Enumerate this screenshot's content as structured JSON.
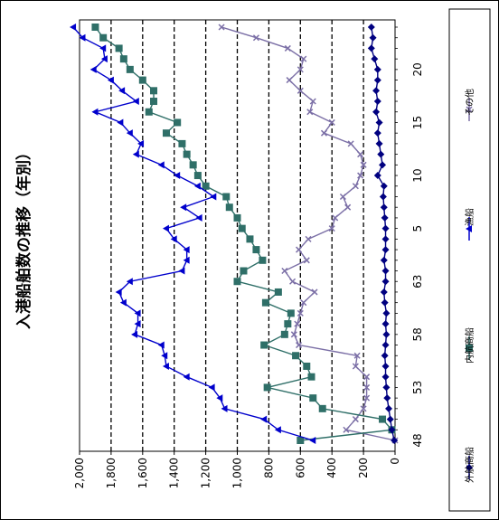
{
  "chart_data": {
    "type": "line",
    "title": "入港船舶数の推移（年別）",
    "x": [
      "48",
      "",
      "",
      "",
      "",
      "53",
      "",
      "",
      "",
      "",
      "58",
      "",
      "",
      "",
      "",
      "63",
      "1",
      "2",
      "3",
      "4",
      "5",
      "6",
      "7",
      "8",
      "9",
      "10",
      "11",
      "12",
      "13",
      "14",
      "15",
      "16",
      "17",
      "18",
      "19",
      "20",
      "21",
      "22",
      "23",
      "24"
    ],
    "x_tick_labels": [
      "48",
      "53",
      "58",
      "63",
      "5",
      "10",
      "15",
      "20"
    ],
    "ylim": [
      0,
      2000
    ],
    "y_tick_labels": [
      "2,000",
      "1,800",
      "1,600",
      "1,400",
      "1,200",
      "1,000",
      "800",
      "600",
      "400",
      "200",
      "0"
    ],
    "grid": true,
    "legend_position": "right",
    "series": [
      {
        "name": "外航商船",
        "color": "#000080",
        "marker": "diamond",
        "values": [
          5,
          20,
          30,
          40,
          50,
          55,
          60,
          60,
          65,
          60,
          55,
          60,
          55,
          65,
          70,
          60,
          60,
          70,
          60,
          60,
          60,
          65,
          70,
          75,
          70,
          110,
          80,
          90,
          100,
          110,
          100,
          120,
          110,
          120,
          110,
          110,
          130,
          150,
          140,
          150
        ]
      },
      {
        "name": "内航商船",
        "color": "#2F6F68",
        "marker": "square",
        "values": [
          600,
          20,
          80,
          460,
          520,
          810,
          530,
          560,
          630,
          830,
          700,
          680,
          660,
          820,
          740,
          1000,
          960,
          840,
          880,
          920,
          970,
          1000,
          1050,
          1070,
          1200,
          1250,
          1280,
          1320,
          1350,
          1450,
          1380,
          1560,
          1530,
          1530,
          1600,
          1680,
          1720,
          1750,
          1850,
          1900
        ]
      },
      {
        "name": "漁船",
        "color": "#0000CC",
        "marker": "triangle",
        "values": [
          520,
          740,
          830,
          1080,
          1110,
          1160,
          1320,
          1450,
          1460,
          1480,
          1650,
          1630,
          1630,
          1720,
          1750,
          1680,
          1350,
          1320,
          1320,
          1400,
          1450,
          1240,
          1340,
          1150,
          1250,
          1380,
          1480,
          1640,
          1610,
          1680,
          1740,
          1900,
          1640,
          1730,
          1800,
          1910,
          1840,
          1850,
          1980,
          2040
        ]
      },
      {
        "name": "その他",
        "color": "#7B6FA6",
        "marker": "x",
        "values": [
          0,
          310,
          250,
          200,
          180,
          180,
          180,
          250,
          240,
          610,
          640,
          620,
          600,
          580,
          510,
          650,
          700,
          560,
          610,
          550,
          400,
          380,
          300,
          330,
          250,
          220,
          200,
          220,
          280,
          450,
          400,
          540,
          520,
          600,
          670,
          600,
          580,
          680,
          880,
          1100
        ]
      }
    ]
  }
}
